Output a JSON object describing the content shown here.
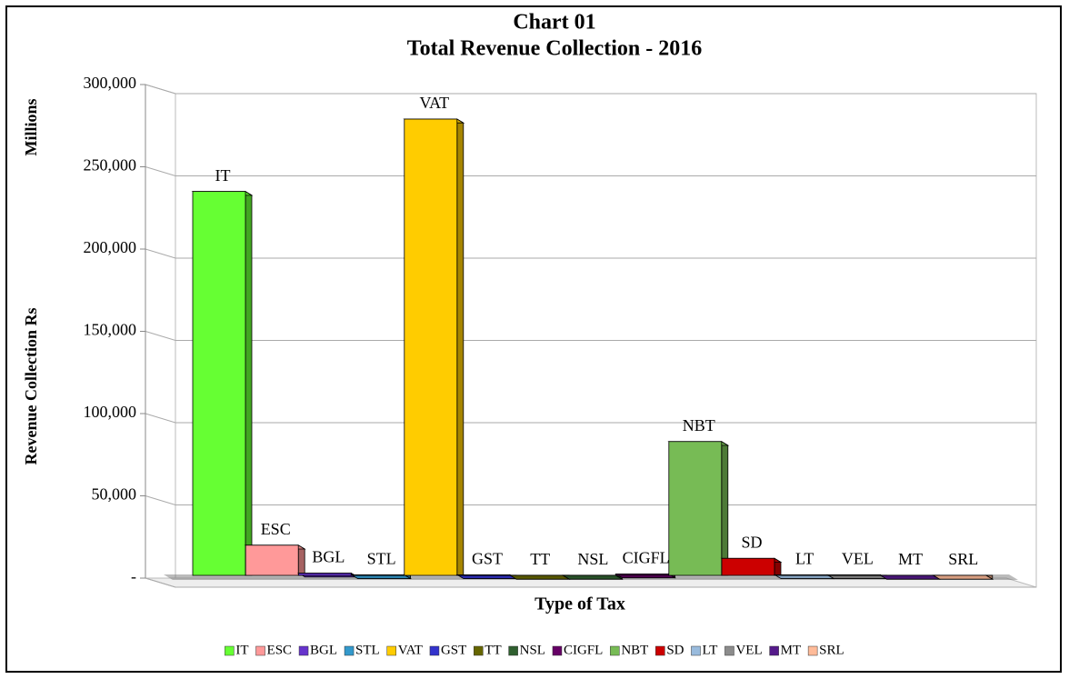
{
  "chart_data": {
    "type": "bar3d",
    "title": "Chart 01",
    "subtitle": "Total Revenue Collection - 2016",
    "y_label": "Revenue Collection Rs",
    "y_unit_label": "Millions",
    "x_label": "Type of Tax",
    "categories": [
      "IT",
      "ESC",
      "BGL",
      "STL",
      "VAT",
      "GST",
      "TT",
      "NSL",
      "CIGFL",
      "NBT",
      "SD",
      "LT",
      "VEL",
      "MT",
      "SRL"
    ],
    "values": [
      235000,
      20000,
      3000,
      2000,
      279000,
      2000,
      1000,
      1000,
      2500,
      83000,
      12000,
      2000,
      2000,
      1500,
      1000
    ],
    "colors": [
      "#66ff33",
      "#ff9999",
      "#6633cc",
      "#3399cc",
      "#ffcc00",
      "#3333cc",
      "#666600",
      "#2f5f2f",
      "#660066",
      "#77bb55",
      "#cc0000",
      "#99bbdd",
      "#8c8c8c",
      "#551a8b",
      "#ffbb99"
    ],
    "ylim": [
      0,
      300000
    ],
    "yticks": [
      {
        "value": 0,
        "label": "-"
      },
      {
        "value": 50000,
        "label": "50,000"
      },
      {
        "value": 100000,
        "label": "100,000"
      },
      {
        "value": 150000,
        "label": "150,000"
      },
      {
        "value": 200000,
        "label": "200,000"
      },
      {
        "value": 250000,
        "label": "250,000"
      },
      {
        "value": 300000,
        "label": "300,000"
      }
    ],
    "grid": true,
    "legend": "bottom"
  }
}
